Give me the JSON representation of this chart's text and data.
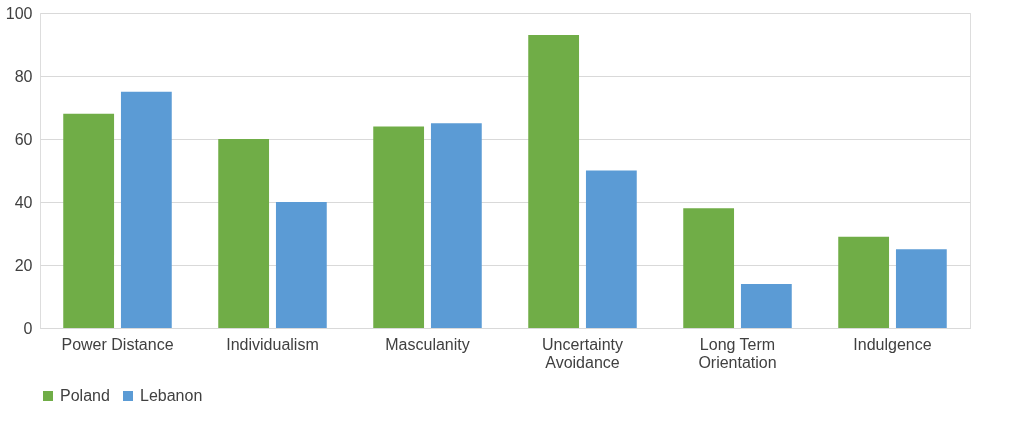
{
  "chart_data": {
    "type": "bar",
    "categories": [
      "Power Distance",
      "Individualism",
      "Masculanity",
      "Uncertainty Avoidance",
      "Long Term Orientation",
      "Indulgence"
    ],
    "series": [
      {
        "name": "Poland",
        "color": "#70ad47",
        "values": [
          68,
          60,
          64,
          93,
          38,
          29
        ]
      },
      {
        "name": "Lebanon",
        "color": "#5b9bd5",
        "values": [
          75,
          40,
          65,
          50,
          14,
          25
        ]
      }
    ],
    "ylim": [
      0,
      100
    ],
    "yticks": [
      0,
      20,
      40,
      60,
      80,
      100
    ],
    "grid": "y",
    "legend": "bottom"
  }
}
